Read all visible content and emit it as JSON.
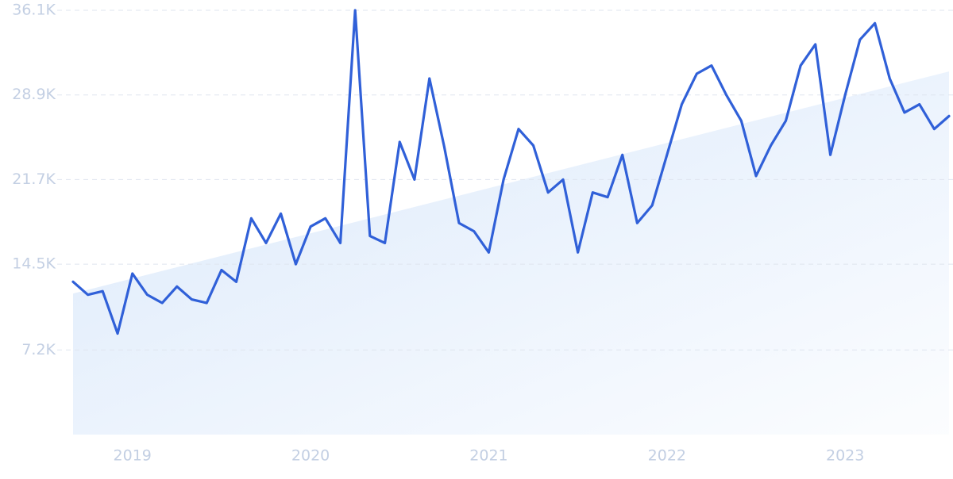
{
  "chart_data": {
    "type": "line",
    "x": [
      2018.667,
      2018.75,
      2018.833,
      2018.917,
      2019.0,
      2019.083,
      2019.167,
      2019.25,
      2019.333,
      2019.417,
      2019.5,
      2019.583,
      2019.667,
      2019.75,
      2019.833,
      2019.917,
      2020.0,
      2020.083,
      2020.167,
      2020.25,
      2020.333,
      2020.417,
      2020.5,
      2020.583,
      2020.667,
      2020.75,
      2020.833,
      2020.917,
      2021.0,
      2021.083,
      2021.167,
      2021.25,
      2021.333,
      2021.417,
      2021.5,
      2021.583,
      2021.667,
      2021.75,
      2021.833,
      2021.917,
      2022.0,
      2022.083,
      2022.167,
      2022.25,
      2022.333,
      2022.417,
      2022.5,
      2022.583,
      2022.667,
      2022.75,
      2022.833,
      2022.917,
      2023.0,
      2023.083,
      2023.167,
      2023.25,
      2023.333,
      2023.417,
      2023.5,
      2023.583
    ],
    "series": [
      {
        "color": "#3060d8",
        "values": [
          13000,
          11900,
          12200,
          8600,
          13700,
          11900,
          11200,
          12600,
          11500,
          11200,
          14000,
          13000,
          18400,
          16300,
          18800,
          14500,
          17700,
          18400,
          16300,
          36100,
          16900,
          16300,
          24900,
          21700,
          30300,
          24500,
          18000,
          17300,
          15500,
          21700,
          26000,
          24600,
          20600,
          21700,
          15500,
          20600,
          20200,
          23800,
          18000,
          19500,
          23800,
          28100,
          30700,
          31400,
          28900,
          26700,
          22000,
          24600,
          26700,
          31400,
          33200,
          23800,
          28900,
          33600,
          35000,
          30300,
          27400,
          28100,
          26000,
          27100
        ]
      }
    ],
    "trend": {
      "color": "#dbe9fb",
      "values": [
        12000,
        30900
      ]
    },
    "xlim": [
      2018.667,
      2023.583
    ],
    "xticks": [
      2019,
      2020,
      2021,
      2022,
      2023
    ],
    "ylim": [
      0,
      36100
    ],
    "yticks": [
      {
        "value": 7200,
        "label": "7.2K"
      },
      {
        "value": 14500,
        "label": "14.5K"
      },
      {
        "value": 21700,
        "label": "21.7K"
      },
      {
        "value": 28900,
        "label": "28.9K"
      },
      {
        "value": 36100,
        "label": "36.1K"
      }
    ],
    "grid": true
  }
}
